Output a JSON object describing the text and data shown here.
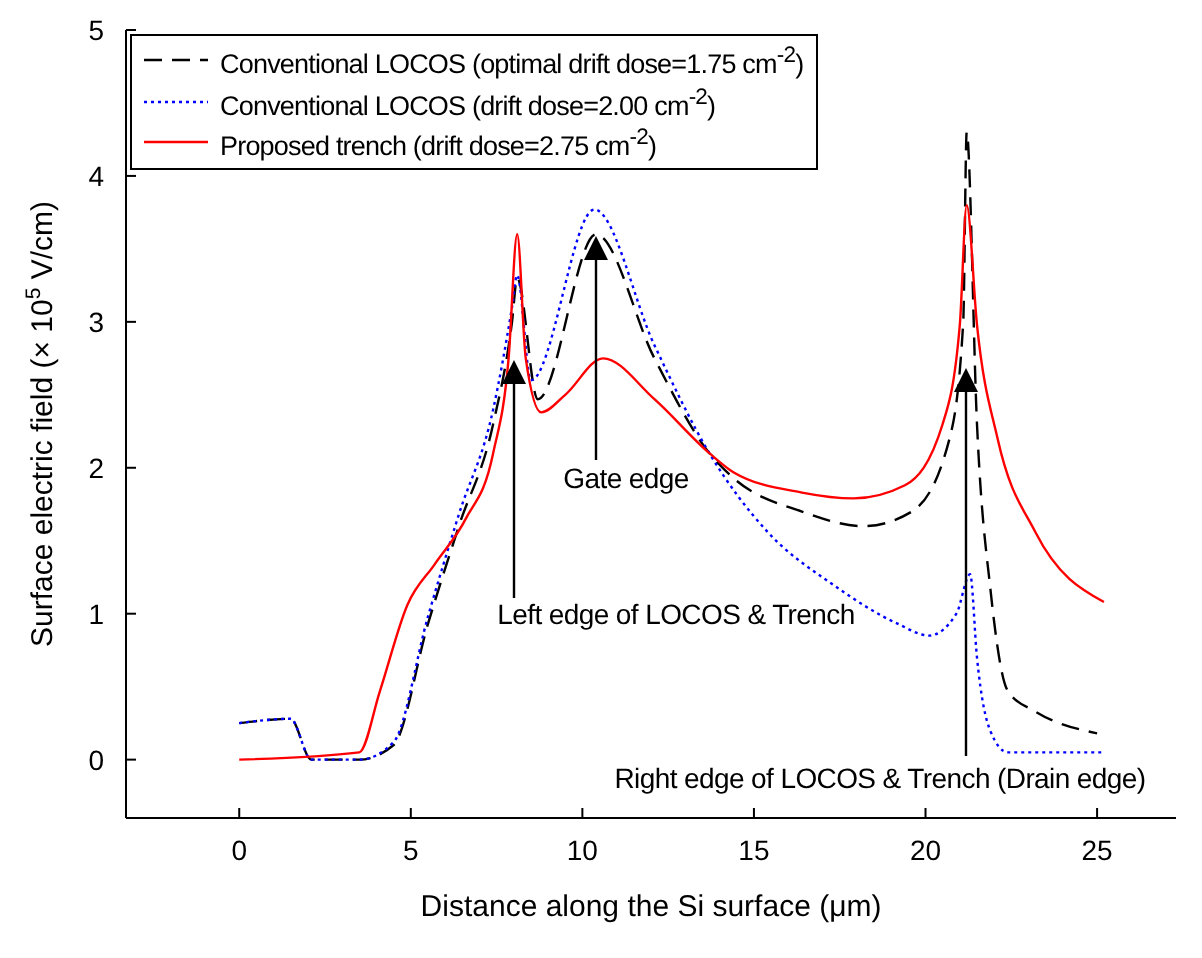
{
  "chart_data": {
    "type": "line",
    "xlabel": "Distance along the Si surface (μm)",
    "ylabel": "Surface electric field (× 10$^{5}$ V/cm)",
    "xlim": [
      -3.3,
      27.3
    ],
    "xticks": [
      0,
      5,
      10,
      15,
      20,
      25
    ],
    "ylim": [
      -0.4,
      5
    ],
    "yticks": [
      0,
      1,
      2,
      3,
      4,
      5
    ],
    "grid": false,
    "legend": "top left",
    "marker": "none",
    "series": [
      {
        "name": "Conventional LOCOS (optimal drift dose=1.75 cm$^{-2}$)",
        "color": "#000000",
        "line_style": "dashed",
        "x": [
          0,
          1.5,
          2.1,
          3.5,
          4.5,
          5.5,
          6.4,
          7.4,
          7.95,
          8.1,
          8.7,
          10.4,
          12.1,
          13.7,
          14.4,
          16.4,
          18.2,
          19.6,
          20.7,
          21.1,
          21.2,
          21.5,
          21.9,
          22.4,
          23.2,
          25
        ],
        "values": [
          0.25,
          0.28,
          0,
          0,
          0.1,
          0.93,
          1.6,
          2.3,
          3.0,
          3.3,
          2.47,
          3.6,
          2.75,
          2.1,
          1.93,
          1.7,
          1.6,
          1.7,
          2.2,
          3.0,
          4.3,
          2.3,
          1.15,
          0.47,
          0.33,
          0.18
        ]
      },
      {
        "name": "Conventional LOCOS (drift dose=2.00 cm$^{-2}$)",
        "color": "#0000ff",
        "line_style": "dotted",
        "x": [
          0,
          1.5,
          2.1,
          3.5,
          4.5,
          5.5,
          6.4,
          7.4,
          7.95,
          8.1,
          8.5,
          10.35,
          12.1,
          13.7,
          15.4,
          17.3,
          19.2,
          20.1,
          20.9,
          21.3,
          21.5,
          21.9,
          22.4,
          25.2
        ],
        "values": [
          0.25,
          0.28,
          0,
          0,
          0.12,
          0.98,
          1.68,
          2.4,
          3.1,
          3.32,
          2.6,
          3.77,
          2.84,
          2.1,
          1.56,
          1.2,
          0.93,
          0.85,
          1.0,
          1.27,
          0.7,
          0.19,
          0.05,
          0.05
        ]
      },
      {
        "name": "Proposed trench (drift dose=2.75 cm$^{-2}$)",
        "color": "#ff0000",
        "line_style": "solid",
        "x": [
          0,
          3.5,
          4.1,
          4.9,
          5.7,
          6.6,
          7.4,
          7.85,
          8.1,
          8.35,
          8.8,
          9.5,
          10.6,
          12.1,
          13.7,
          14.4,
          16.4,
          17.9,
          19.4,
          20.5,
          21,
          21.2,
          21.5,
          22.1,
          23.2,
          25.2
        ],
        "values": [
          0,
          0.05,
          0.47,
          1.06,
          1.34,
          1.65,
          2.1,
          2.75,
          3.6,
          2.75,
          2.38,
          2.5,
          2.75,
          2.47,
          2.1,
          1.97,
          1.83,
          1.79,
          1.88,
          2.3,
          2.98,
          3.8,
          2.98,
          2.2,
          1.56,
          1.08
        ]
      }
    ],
    "annotations": [
      "Left edge of LOCOS & Trench",
      "Gate edge",
      "Right edge of LOCOS & Trench (Drain edge)"
    ]
  }
}
